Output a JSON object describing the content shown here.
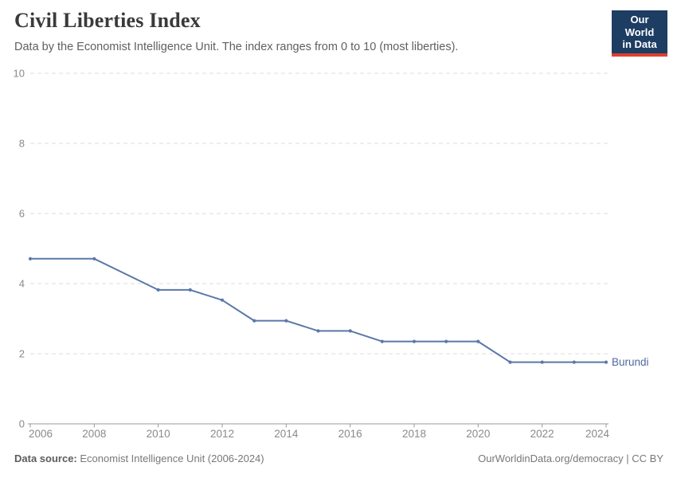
{
  "header": {
    "title": "Civil Liberties Index",
    "subtitle": "Data by the Economist Intelligence Unit. The index ranges from 0 to 10 (most liberties).",
    "logo": {
      "line1": "Our World",
      "line2": "in Data"
    }
  },
  "chart_data": {
    "type": "line",
    "title": "Civil Liberties Index",
    "series": [
      {
        "name": "Burundi",
        "x": [
          2006,
          2008,
          2010,
          2011,
          2012,
          2013,
          2014,
          2015,
          2016,
          2017,
          2018,
          2019,
          2020,
          2021,
          2022,
          2023,
          2024
        ],
        "values": [
          4.71,
          4.71,
          3.82,
          3.82,
          3.53,
          2.94,
          2.94,
          2.65,
          2.65,
          2.35,
          2.35,
          2.35,
          2.35,
          1.76,
          1.76,
          1.76,
          1.76
        ],
        "color": "#5b78a8",
        "label_color": "#4c6a9c"
      }
    ],
    "xlabel": "",
    "ylabel": "",
    "xlim": [
      2006,
      2024
    ],
    "ylim": [
      0,
      10
    ],
    "yticks": [
      0,
      2,
      4,
      6,
      8,
      10
    ],
    "xticks": [
      2006,
      2008,
      2010,
      2012,
      2014,
      2016,
      2018,
      2020,
      2022,
      2024
    ],
    "grid": "horizontal-dashed",
    "legend_position": "end-of-line-label"
  },
  "footer": {
    "source_label": "Data source:",
    "source_text": "Economist Intelligence Unit (2006-2024)",
    "credit": "OurWorldinData.org/democracy | CC BY"
  },
  "colors": {
    "grid": "#dedede",
    "axis": "#999999",
    "tick_label": "#8a8a8a",
    "logo_bg": "#1d3d63",
    "logo_red": "#e0402d"
  }
}
